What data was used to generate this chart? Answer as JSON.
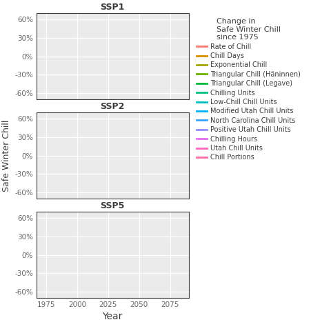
{
  "panels": [
    "SSP1",
    "SSP2",
    "SSP5"
  ],
  "xlabel": "Year",
  "ylabel": "Safe Winter Chill",
  "ylim": [
    -0.7,
    0.7
  ],
  "yticks": [
    -0.6,
    -0.3,
    0.0,
    0.3,
    0.6
  ],
  "ytick_labels": [
    "-60%",
    "-30%",
    "0%",
    "30%",
    "60%"
  ],
  "xlim": [
    1967,
    2090
  ],
  "xticks": [
    1975,
    2000,
    2025,
    2050,
    2075
  ],
  "xtick_labels": [
    "1975",
    "2000",
    "2025",
    "2050",
    "2075"
  ],
  "legend_title": "Change in\nSafe Winter Chill\nsince 1975",
  "legend_entries": [
    {
      "label": "Rate of Chill",
      "color": "#F8766D"
    },
    {
      "label": "Chill Days",
      "color": "#D89000"
    },
    {
      "label": "Exponential Chill",
      "color": "#A3A500"
    },
    {
      "label": "Triangular Chill (Häninnen)",
      "color": "#6BB100"
    },
    {
      "label": "Triangular Chill (Legave)",
      "color": "#00BA38"
    },
    {
      "label": "Chilling Units",
      "color": "#00BF7D"
    },
    {
      "label": "Low-Chill Chill Units",
      "color": "#00BFC4"
    },
    {
      "label": "Modified Utah Chill Units",
      "color": "#00B0F6"
    },
    {
      "label": "North Carolina Chill Units",
      "color": "#35A2FF"
    },
    {
      "label": "Positive Utah Chill Units",
      "color": "#9590FF"
    },
    {
      "label": "Chilling Hours",
      "color": "#E76BF3"
    },
    {
      "label": "Utah Chill Units",
      "color": "#FF62BC"
    },
    {
      "label": "Chill Portions",
      "color": "#FF67A4"
    }
  ],
  "background_color": "#FFFFFF",
  "panel_bg_color": "#EBEBEB",
  "grid_color": "#FFFFFF",
  "title_color": "#3D3D3D",
  "axis_label_color": "#3D3D3D",
  "tick_color": "#666666",
  "legend_title_color": "#3D3D3D",
  "legend_text_color": "#3D3D3D",
  "spine_color": "#3D3D3D"
}
